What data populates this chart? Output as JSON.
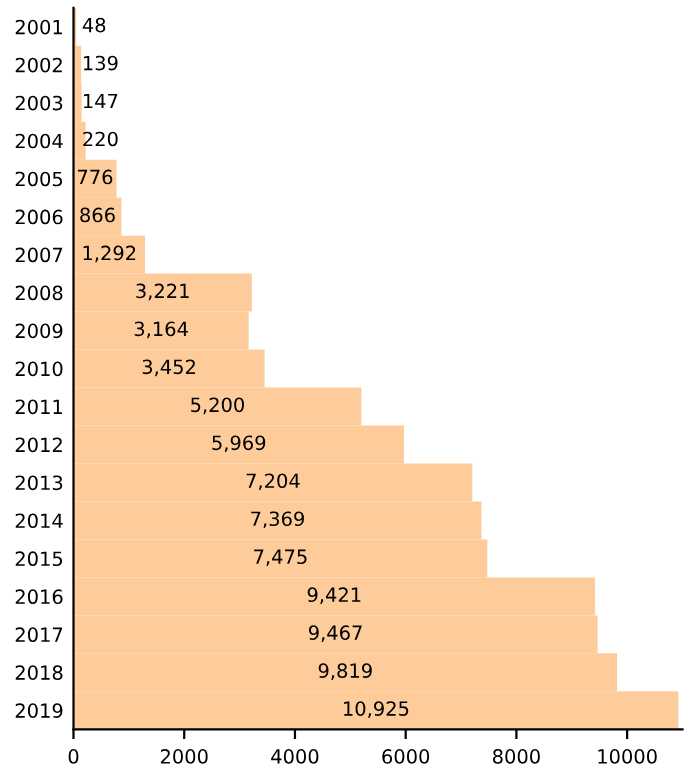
{
  "chart_data": {
    "type": "bar",
    "orientation": "horizontal",
    "categories": [
      "2001",
      "2002",
      "2003",
      "2004",
      "2005",
      "2006",
      "2007",
      "2008",
      "2009",
      "2010",
      "2011",
      "2012",
      "2013",
      "2014",
      "2015",
      "2016",
      "2017",
      "2018",
      "2019"
    ],
    "values": [
      48,
      139,
      147,
      220,
      776,
      866,
      1292,
      3221,
      3164,
      3452,
      5200,
      5969,
      7204,
      7369,
      7475,
      9421,
      9467,
      9819,
      10925
    ],
    "value_labels": [
      "48",
      "139",
      "147",
      "220",
      "776",
      "866",
      "1,292",
      "3,221",
      "3,164",
      "3,452",
      "5,200",
      "5,969",
      "7,204",
      "7,369",
      "7,475",
      "9,421",
      "9,467",
      "9,819",
      "10,925"
    ],
    "color": "#fdcc9a",
    "xlim": [
      0,
      11000
    ],
    "xticks": [
      0,
      2000,
      4000,
      6000,
      8000,
      10000
    ],
    "grid": false,
    "legend": false
  }
}
